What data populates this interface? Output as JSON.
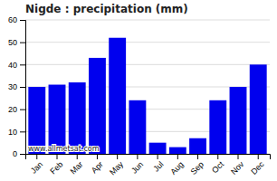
{
  "chart_data": {
    "type": "bar",
    "title": "Nigde : precipitation (mm)",
    "categories": [
      "Jan",
      "Feb",
      "Mar",
      "Apr",
      "May",
      "Jun",
      "Jul",
      "Aug",
      "Sep",
      "Oct",
      "Nov",
      "Dec"
    ],
    "values": [
      30,
      31,
      32,
      43,
      52,
      24,
      5,
      3,
      7,
      24,
      30,
      40
    ],
    "color": "#0000ee",
    "ylim": [
      0,
      60
    ],
    "yticks": [
      0,
      10,
      20,
      30,
      40,
      50,
      60
    ],
    "grid": true,
    "annotations": [
      "www.allmetsat.com"
    ]
  }
}
